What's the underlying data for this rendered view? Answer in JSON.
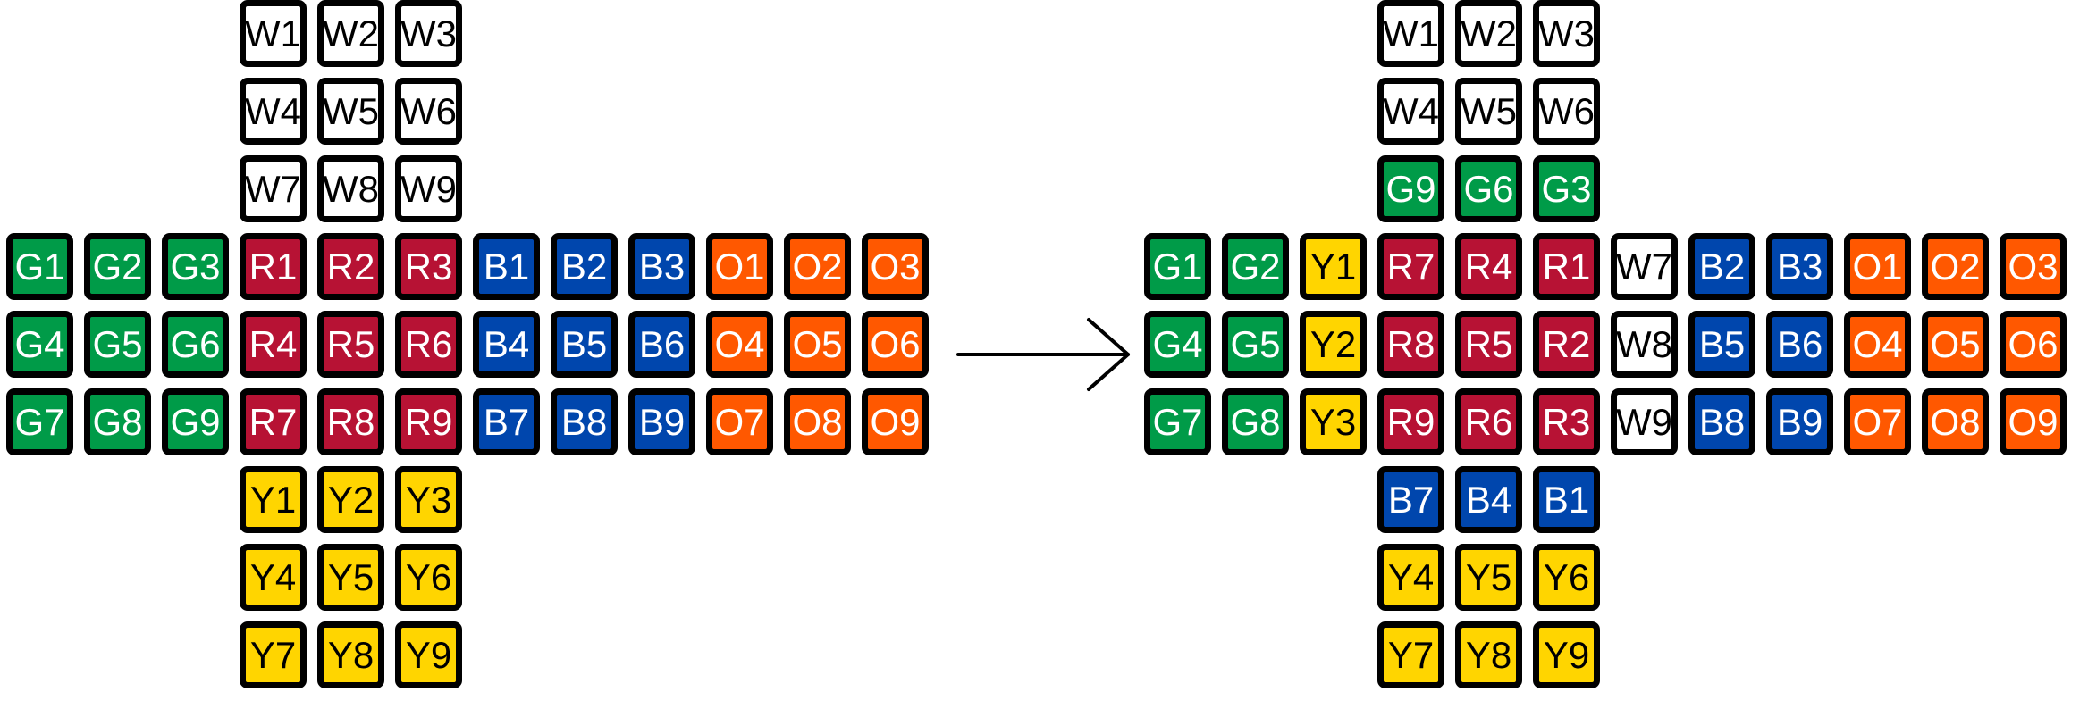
{
  "colors": {
    "W": "#ffffff",
    "G": "#009b48",
    "R": "#b71234",
    "B": "#0046ad",
    "O": "#ff5800",
    "Y": "#ffd500",
    "border": "#000000"
  },
  "before": {
    "up": [
      [
        "W1",
        "W2",
        "W3"
      ],
      [
        "W4",
        "W5",
        "W6"
      ],
      [
        "W7",
        "W8",
        "W9"
      ]
    ],
    "left": [
      [
        "G1",
        "G2",
        "G3"
      ],
      [
        "G4",
        "G5",
        "G6"
      ],
      [
        "G7",
        "G8",
        "G9"
      ]
    ],
    "front": [
      [
        "R1",
        "R2",
        "R3"
      ],
      [
        "R4",
        "R5",
        "R6"
      ],
      [
        "R7",
        "R8",
        "R9"
      ]
    ],
    "right": [
      [
        "B1",
        "B2",
        "B3"
      ],
      [
        "B4",
        "B5",
        "B6"
      ],
      [
        "B7",
        "B8",
        "B9"
      ]
    ],
    "back": [
      [
        "O1",
        "O2",
        "O3"
      ],
      [
        "O4",
        "O5",
        "O6"
      ],
      [
        "O7",
        "O8",
        "O9"
      ]
    ],
    "down": [
      [
        "Y1",
        "Y2",
        "Y3"
      ],
      [
        "Y4",
        "Y5",
        "Y6"
      ],
      [
        "Y7",
        "Y8",
        "Y9"
      ]
    ]
  },
  "after": {
    "up": [
      [
        "W1",
        "W2",
        "W3"
      ],
      [
        "W4",
        "W5",
        "W6"
      ],
      [
        "G9",
        "G6",
        "G3"
      ]
    ],
    "left": [
      [
        "G1",
        "G2",
        "Y1"
      ],
      [
        "G4",
        "G5",
        "Y2"
      ],
      [
        "G7",
        "G8",
        "Y3"
      ]
    ],
    "front": [
      [
        "R7",
        "R4",
        "R1"
      ],
      [
        "R8",
        "R5",
        "R2"
      ],
      [
        "R9",
        "R6",
        "R3"
      ]
    ],
    "right": [
      [
        "W7",
        "B2",
        "B3"
      ],
      [
        "W8",
        "B5",
        "B6"
      ],
      [
        "W9",
        "B8",
        "B9"
      ]
    ],
    "back": [
      [
        "O1",
        "O2",
        "O3"
      ],
      [
        "O4",
        "O5",
        "O6"
      ],
      [
        "O7",
        "O8",
        "O9"
      ]
    ],
    "down": [
      [
        "B7",
        "B4",
        "B1"
      ],
      [
        "Y4",
        "Y5",
        "Y6"
      ],
      [
        "Y7",
        "Y8",
        "Y9"
      ]
    ]
  }
}
